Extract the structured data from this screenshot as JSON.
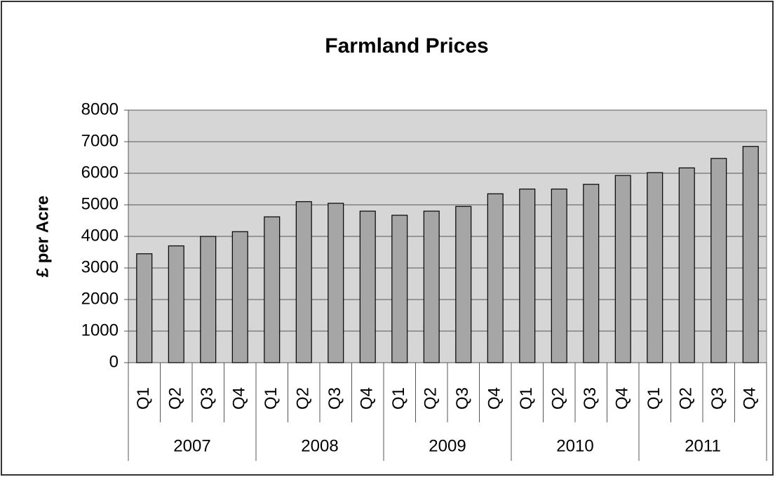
{
  "chart_data": {
    "type": "bar",
    "title": "Farmland Prices",
    "y_label": "£ per Acre",
    "categories": [
      "Q1",
      "Q2",
      "Q3",
      "Q4",
      "Q1",
      "Q2",
      "Q3",
      "Q4",
      "Q1",
      "Q2",
      "Q3",
      "Q4",
      "Q1",
      "Q2",
      "Q3",
      "Q4",
      "Q1",
      "Q2",
      "Q3",
      "Q4"
    ],
    "groups": [
      "2007",
      "2008",
      "2009",
      "2010",
      "2011"
    ],
    "values": [
      3450,
      3700,
      4000,
      4150,
      4620,
      5100,
      5050,
      4800,
      4670,
      4800,
      4950,
      5350,
      5500,
      5500,
      5650,
      5930,
      6020,
      6170,
      6470,
      6850
    ],
    "color": "#a6a6a6",
    "ylim": [
      0,
      8000
    ],
    "yticks": [
      0,
      1000,
      2000,
      3000,
      4000,
      5000,
      6000,
      7000,
      8000
    ],
    "grid": true
  }
}
